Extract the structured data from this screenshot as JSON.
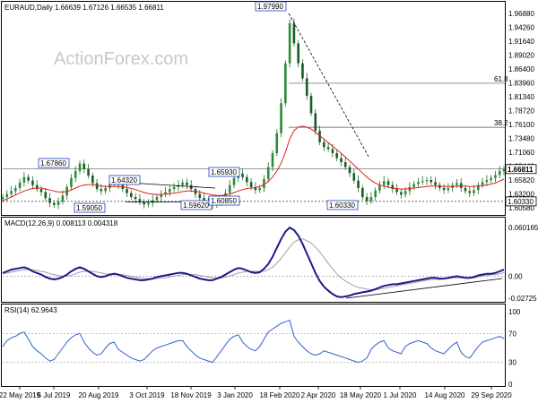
{
  "chart_data": {
    "type": "candlestick",
    "panels": {
      "price": {
        "header": "EURAUD,Daily  1.66639 1.67126 1.66535 1.66811",
        "watermark": "ActionForex.com",
        "yticks": [
          "1.96880",
          "1.94260",
          "1.91640",
          "1.89020",
          "1.86400",
          "1.83960",
          "1.81340",
          "1.78720",
          "1.76100",
          "1.73480",
          "1.71060",
          "1.68440",
          "1.65820",
          "1.63200",
          "1.60580"
        ],
        "ylim": [
          1.5905,
          1.9799
        ],
        "current_price_label": "1.66811",
        "current_price": 1.66811,
        "support_label": "1.60330",
        "support": 1.6033,
        "fib_levels": [
          {
            "label": "61.8",
            "value": 1.84
          },
          {
            "label": "38.2",
            "value": 1.7518
          }
        ],
        "annotations": [
          {
            "label": "1.67860",
            "value": 1.6786
          },
          {
            "label": "1.59050",
            "value": 1.5905
          },
          {
            "label": "1.64320",
            "value": 1.6432
          },
          {
            "label": "1.59620",
            "value": 1.5962
          },
          {
            "label": "1.60850",
            "value": 1.6085
          },
          {
            "label": "1.65930",
            "value": 1.6593
          },
          {
            "label": "1.97990",
            "value": 1.9799
          },
          {
            "label": "1.60330",
            "value": 1.6033
          }
        ],
        "close_series": [
          1.612,
          1.618,
          1.624,
          1.63,
          1.641,
          1.652,
          1.645,
          1.636,
          1.628,
          1.622,
          1.61,
          1.6,
          1.596,
          1.603,
          1.615,
          1.632,
          1.65,
          1.664,
          1.679,
          1.668,
          1.655,
          1.64,
          1.628,
          1.624,
          1.63,
          1.638,
          1.643,
          1.636,
          1.628,
          1.62,
          1.612,
          1.608,
          1.602,
          1.597,
          1.6,
          1.606,
          1.612,
          1.618,
          1.622,
          1.628,
          1.632,
          1.636,
          1.641,
          1.636,
          1.628,
          1.618,
          1.61,
          1.605,
          1.6,
          1.596,
          1.602,
          1.61,
          1.62,
          1.636,
          1.65,
          1.659,
          1.652,
          1.642,
          1.632,
          1.626,
          1.63,
          1.648,
          1.672,
          1.7,
          1.74,
          1.8,
          1.88,
          1.96,
          1.92,
          1.88,
          1.85,
          1.815,
          1.78,
          1.745,
          1.722,
          1.712,
          1.708,
          1.7,
          1.69,
          1.682,
          1.672,
          1.66,
          1.645,
          1.63,
          1.612,
          1.604,
          1.612,
          1.625,
          1.636,
          1.644,
          1.636,
          1.628,
          1.622,
          1.617,
          1.624,
          1.632,
          1.638,
          1.642,
          1.644,
          1.646,
          1.642,
          1.636,
          1.63,
          1.626,
          1.63,
          1.636,
          1.64,
          1.63,
          1.624,
          1.62,
          1.626,
          1.636,
          1.642,
          1.646,
          1.65,
          1.656,
          1.664,
          1.6681
        ],
        "ma_series": [
          1.605,
          1.608,
          1.612,
          1.616,
          1.62,
          1.624,
          1.627,
          1.629,
          1.63,
          1.63,
          1.628,
          1.626,
          1.624,
          1.622,
          1.622,
          1.623,
          1.626,
          1.63,
          1.634,
          1.636,
          1.637,
          1.637,
          1.636,
          1.634,
          1.633,
          1.633,
          1.633,
          1.633,
          1.632,
          1.631,
          1.629,
          1.627,
          1.624,
          1.621,
          1.619,
          1.618,
          1.617,
          1.617,
          1.618,
          1.619,
          1.62,
          1.621,
          1.623,
          1.624,
          1.624,
          1.623,
          1.622,
          1.62,
          1.618,
          1.616,
          1.615,
          1.615,
          1.616,
          1.618,
          1.621,
          1.624,
          1.627,
          1.629,
          1.63,
          1.631,
          1.633,
          1.637,
          1.643,
          1.652,
          1.664,
          1.68,
          1.702,
          1.728,
          1.745,
          1.752,
          1.754,
          1.752,
          1.748,
          1.742,
          1.735,
          1.728,
          1.721,
          1.714,
          1.707,
          1.7,
          1.692,
          1.684,
          1.676,
          1.668,
          1.66,
          1.652,
          1.645,
          1.64,
          1.636,
          1.634,
          1.632,
          1.63,
          1.629,
          1.628,
          1.628,
          1.629,
          1.63,
          1.631,
          1.632,
          1.633,
          1.634,
          1.634,
          1.634,
          1.633,
          1.633,
          1.633,
          1.634,
          1.634,
          1.634,
          1.633,
          1.633,
          1.634,
          1.635,
          1.636,
          1.638,
          1.64,
          1.644,
          1.648
        ]
      },
      "macd": {
        "header": "MACD(12,26,9) 0.008113 0.004318",
        "yticks": [
          "0.060165",
          "0.00",
          "-0.02725"
        ],
        "ylim": [
          -0.02725,
          0.060165
        ],
        "macd_series": [
          0.004,
          0.006,
          0.008,
          0.009,
          0.01,
          0.011,
          0.009,
          0.006,
          0.004,
          0.002,
          -0.001,
          -0.003,
          -0.004,
          -0.003,
          -0.001,
          0.002,
          0.006,
          0.009,
          0.011,
          0.009,
          0.006,
          0.003,
          0.0,
          -0.001,
          0.0,
          0.002,
          0.003,
          0.002,
          0.0,
          -0.002,
          -0.003,
          -0.004,
          -0.005,
          -0.005,
          -0.004,
          -0.003,
          -0.001,
          0.0,
          0.001,
          0.002,
          0.003,
          0.004,
          0.004,
          0.003,
          0.001,
          -0.001,
          -0.003,
          -0.004,
          -0.005,
          -0.005,
          -0.003,
          -0.001,
          0.002,
          0.005,
          0.008,
          0.01,
          0.009,
          0.007,
          0.005,
          0.004,
          0.005,
          0.009,
          0.015,
          0.024,
          0.035,
          0.046,
          0.055,
          0.06,
          0.057,
          0.05,
          0.04,
          0.028,
          0.016,
          0.004,
          -0.006,
          -0.013,
          -0.018,
          -0.022,
          -0.025,
          -0.026,
          -0.025,
          -0.024,
          -0.022,
          -0.021,
          -0.02,
          -0.019,
          -0.018,
          -0.016,
          -0.014,
          -0.012,
          -0.011,
          -0.01,
          -0.01,
          -0.009,
          -0.008,
          -0.007,
          -0.006,
          -0.005,
          -0.004,
          -0.003,
          -0.002,
          -0.002,
          -0.003,
          -0.003,
          -0.002,
          -0.001,
          0.0,
          -0.001,
          -0.002,
          -0.002,
          -0.001,
          0.001,
          0.002,
          0.003,
          0.003,
          0.004,
          0.006,
          0.0081
        ],
        "signal_series": [
          0.003,
          0.004,
          0.005,
          0.006,
          0.007,
          0.008,
          0.008,
          0.008,
          0.007,
          0.006,
          0.005,
          0.003,
          0.002,
          0.001,
          0.0,
          0.0,
          0.001,
          0.003,
          0.005,
          0.006,
          0.006,
          0.006,
          0.005,
          0.004,
          0.003,
          0.002,
          0.002,
          0.002,
          0.002,
          0.001,
          0.0,
          -0.001,
          -0.002,
          -0.003,
          -0.003,
          -0.003,
          -0.003,
          -0.002,
          -0.002,
          -0.001,
          0.0,
          0.001,
          0.002,
          0.002,
          0.002,
          0.002,
          0.001,
          0.0,
          -0.001,
          -0.002,
          -0.002,
          -0.002,
          -0.001,
          0.0,
          0.002,
          0.004,
          0.005,
          0.006,
          0.006,
          0.006,
          0.006,
          0.006,
          0.008,
          0.011,
          0.016,
          0.022,
          0.029,
          0.036,
          0.042,
          0.045,
          0.046,
          0.044,
          0.041,
          0.036,
          0.03,
          0.023,
          0.016,
          0.009,
          0.003,
          -0.002,
          -0.006,
          -0.009,
          -0.012,
          -0.014,
          -0.015,
          -0.016,
          -0.017,
          -0.017,
          -0.016,
          -0.015,
          -0.014,
          -0.013,
          -0.012,
          -0.011,
          -0.01,
          -0.009,
          -0.008,
          -0.007,
          -0.006,
          -0.005,
          -0.004,
          -0.004,
          -0.004,
          -0.003,
          -0.003,
          -0.002,
          -0.002,
          -0.002,
          -0.002,
          -0.002,
          -0.002,
          -0.001,
          0.0,
          0.001,
          0.002,
          0.002,
          0.003,
          0.0043
        ]
      },
      "rsi": {
        "header": "RSI(14) 62.9643",
        "yticks": [
          "100",
          "70",
          "30",
          "0"
        ],
        "levels": [
          70,
          30
        ],
        "ylim": [
          0,
          100
        ],
        "rsi_series": [
          52,
          60,
          64,
          66,
          70,
          72,
          62,
          52,
          46,
          42,
          36,
          32,
          34,
          42,
          50,
          58,
          64,
          68,
          70,
          58,
          50,
          44,
          40,
          42,
          50,
          56,
          58,
          48,
          44,
          40,
          36,
          34,
          32,
          34,
          40,
          46,
          50,
          52,
          54,
          56,
          58,
          60,
          60,
          52,
          46,
          40,
          36,
          34,
          32,
          30,
          38,
          46,
          54,
          62,
          66,
          68,
          58,
          52,
          48,
          46,
          52,
          62,
          72,
          76,
          80,
          84,
          86,
          88,
          66,
          58,
          52,
          46,
          42,
          40,
          42,
          46,
          44,
          42,
          40,
          38,
          36,
          34,
          32,
          30,
          32,
          36,
          48,
          54,
          58,
          60,
          50,
          46,
          44,
          42,
          52,
          56,
          58,
          60,
          58,
          56,
          50,
          46,
          44,
          42,
          48,
          54,
          58,
          44,
          38,
          36,
          44,
          52,
          58,
          60,
          62,
          64,
          66,
          62.96
        ]
      }
    },
    "x_tick_labels": [
      "22 May 2019",
      "5 Jul 2019",
      "20 Aug 2019",
      "3 Oct 2019",
      "18 Nov 2019",
      "3 Jan 2020",
      "18 Feb 2020",
      "2 Apr 2020",
      "18 May 2020",
      "1 Jul 2020",
      "14 Aug 2020",
      "29 Sep 2020"
    ]
  }
}
